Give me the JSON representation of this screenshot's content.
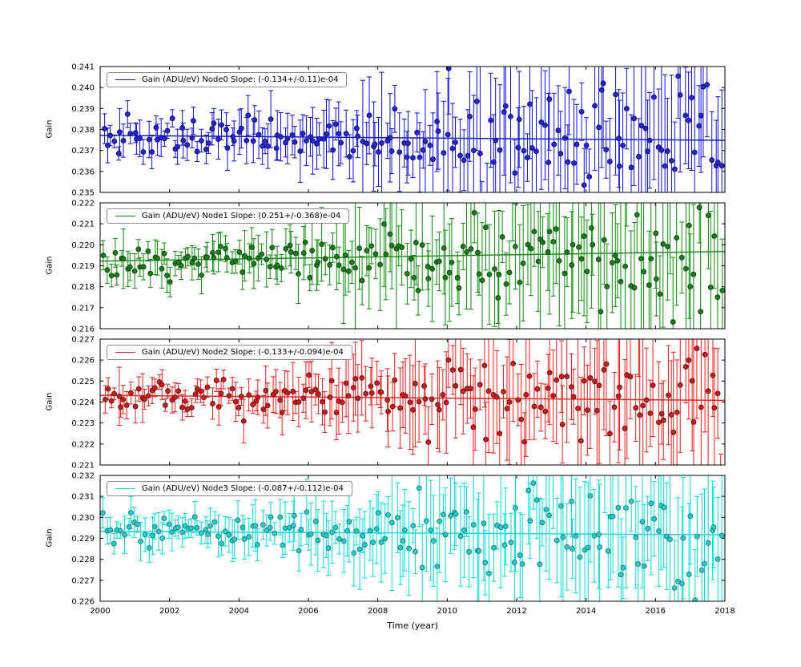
{
  "figure": {
    "xlabel": "Time (year)",
    "ylabel": "Gain",
    "background": "#ffffff",
    "x_range": [
      2000,
      2018
    ],
    "x_ticks": [
      2000,
      2002,
      2004,
      2006,
      2008,
      2010,
      2012,
      2014,
      2016,
      2018
    ]
  },
  "chart_data": [
    {
      "type": "scatter",
      "node": "Node0",
      "legend": "Gain (ADU/eV) Node0 Slope: (-0.134+/-0.11)e-04",
      "color": "#0b0bdf",
      "marker": "#2626c9",
      "edge": "#00007a",
      "ylim": [
        0.235,
        0.241
      ],
      "yticks": [
        0.235,
        0.236,
        0.237,
        0.238,
        0.239,
        0.24,
        0.241
      ],
      "fit": {
        "x0": 2000,
        "y0": 0.23772,
        "x1": 2018,
        "y1": 0.23748
      },
      "model": {
        "n": 185,
        "seed": 42,
        "x_start": 2000.12,
        "x_end": 2017.9,
        "ref_year": 2009,
        "mean": 0.2376,
        "slope": -1.34e-05,
        "scatter_base": 0.00042,
        "scatter_growth": 0.0013,
        "err_base": 0.00055,
        "err_growth": 0.0024
      }
    },
    {
      "type": "scatter",
      "node": "Node1",
      "legend": "Gain (ADU/eV) Node1 Slope: (0.251+/-0.368)e-04",
      "color": "#0b8a0b",
      "marker": "#1d7a1d",
      "edge": "#003f00",
      "ylim": [
        0.216,
        0.222
      ],
      "yticks": [
        0.216,
        0.217,
        0.218,
        0.219,
        0.22,
        0.221,
        0.222
      ],
      "fit": {
        "x0": 2000,
        "y0": 0.21922,
        "x1": 2018,
        "y1": 0.21968
      },
      "model": {
        "n": 185,
        "seed": 1337,
        "x_start": 2000.12,
        "x_end": 2017.9,
        "ref_year": 2009,
        "mean": 0.21945,
        "slope": 2.51e-05,
        "scatter_base": 0.0004,
        "scatter_growth": 0.0012,
        "err_base": 0.00055,
        "err_growth": 0.0024
      }
    },
    {
      "type": "scatter",
      "node": "Node2",
      "legend": "Gain (ADU/eV) Node2 Slope: (-0.133+/-0.094)e-04",
      "color": "#ef1a1a",
      "marker": "#c02020",
      "edge": "#6e0000",
      "ylim": [
        0.221,
        0.227
      ],
      "yticks": [
        0.221,
        0.222,
        0.223,
        0.224,
        0.225,
        0.226,
        0.227
      ],
      "fit": {
        "x0": 2000,
        "y0": 0.22432,
        "x1": 2018,
        "y1": 0.22408
      },
      "model": {
        "n": 185,
        "seed": 2024,
        "x_start": 2000.12,
        "x_end": 2017.9,
        "ref_year": 2009,
        "mean": 0.2242,
        "slope": -1.33e-05,
        "scatter_base": 0.0004,
        "scatter_growth": 0.0012,
        "err_base": 0.0005,
        "err_growth": 0.0024
      }
    },
    {
      "type": "scatter",
      "node": "Node3",
      "legend": "Gain (ADU/eV) Node3 Slope: (-0.087+/-0.112)e-04",
      "color": "#00dcdc",
      "marker": "#2cc9c9",
      "edge": "#007878",
      "ylim": [
        0.226,
        0.232
      ],
      "yticks": [
        0.226,
        0.227,
        0.228,
        0.229,
        0.23,
        0.231,
        0.232
      ],
      "fit": {
        "x0": 2000,
        "y0": 0.22933,
        "x1": 2018,
        "y1": 0.22917
      },
      "model": {
        "n": 185,
        "seed": 7,
        "x_start": 2000.12,
        "x_end": 2017.9,
        "ref_year": 2009,
        "mean": 0.22925,
        "slope": -8.7e-06,
        "scatter_base": 0.00038,
        "scatter_growth": 0.0012,
        "err_base": 0.00055,
        "err_growth": 0.0022
      }
    }
  ]
}
